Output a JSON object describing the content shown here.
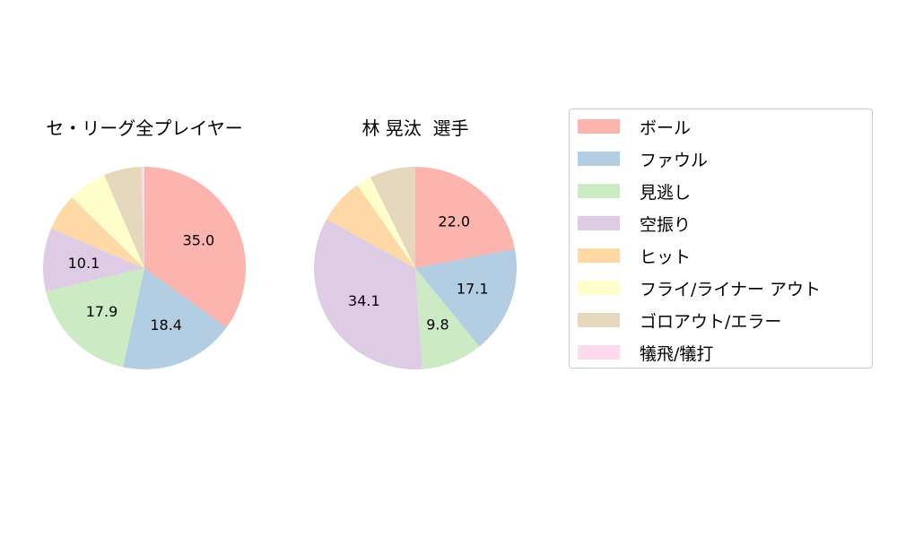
{
  "chart_data": [
    {
      "type": "pie",
      "title": "セ・リーグ全プレイヤー",
      "categories": [
        "ボール",
        "ファウル",
        "見逃し",
        "空振り",
        "ヒット",
        "フライ/ライナー アウト",
        "ゴロアウト/エラー",
        "犠飛/犠打"
      ],
      "values": [
        35.0,
        18.4,
        17.9,
        10.1,
        5.9,
        6.2,
        6.0,
        0.5
      ],
      "labels_shown": [
        "35.0",
        "18.4",
        "17.9",
        "10.1",
        "",
        "",
        "",
        ""
      ],
      "start_angle": 90,
      "direction": "clockwise"
    },
    {
      "type": "pie",
      "title": "林 晃汰  選手",
      "categories": [
        "ボール",
        "ファウル",
        "見逃し",
        "空振り",
        "ヒット",
        "フライ/ライナー アウト",
        "ゴロアウト/エラー",
        "犠飛/犠打"
      ],
      "values": [
        22.0,
        17.1,
        9.8,
        34.1,
        7.3,
        2.4,
        7.3,
        0.0
      ],
      "labels_shown": [
        "22.0",
        "17.1",
        "9.8",
        "34.1",
        "",
        "",
        "",
        ""
      ],
      "start_angle": 90,
      "direction": "clockwise"
    }
  ],
  "legend": {
    "position": "right",
    "items": [
      {
        "label": "ボール",
        "color": "#fbb4ae"
      },
      {
        "label": "ファウル",
        "color": "#b3cde3"
      },
      {
        "label": "見逃し",
        "color": "#ccebc5"
      },
      {
        "label": "空振り",
        "color": "#decbe4"
      },
      {
        "label": "ヒット",
        "color": "#fed9a6"
      },
      {
        "label": "フライ/ライナー アウト",
        "color": "#ffffcc"
      },
      {
        "label": "ゴロアウト/エラー",
        "color": "#e5d8bd"
      },
      {
        "label": "犠飛/犠打",
        "color": "#fddaec"
      }
    ]
  },
  "titles": {
    "left": "セ・リーグ全プレイヤー",
    "right": "林 晃汰  選手"
  }
}
